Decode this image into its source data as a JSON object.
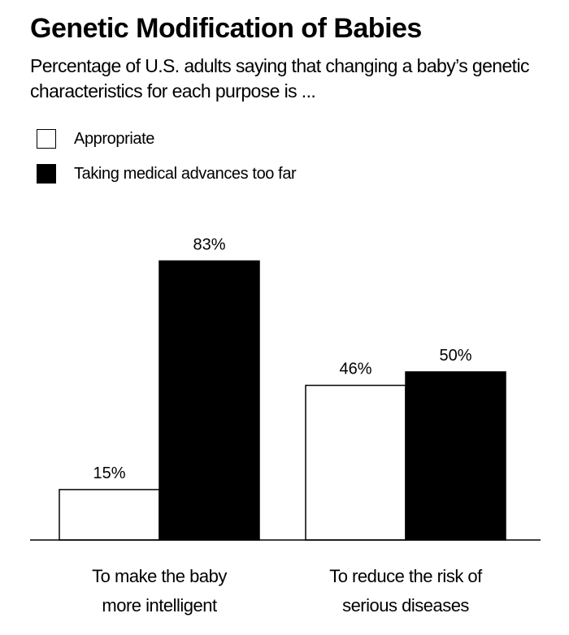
{
  "colors": {
    "appropriate": "#ffffff",
    "too_far": "#000000",
    "stroke": "#000000"
  },
  "chart_data": {
    "type": "bar",
    "title": "Genetic Modification of Babies",
    "subtitle": "Percentage of U.S. adults saying that changing a baby’s genetic characteristics for each purpose is ...",
    "categories": [
      [
        "To make the baby",
        "more intelligent"
      ],
      [
        "To reduce the risk of",
        "serious diseases"
      ]
    ],
    "series": [
      {
        "name": "Appropriate",
        "values": [
          15,
          46
        ],
        "labels": [
          "15%",
          "46%"
        ]
      },
      {
        "name": "Taking medical advances too far",
        "values": [
          83,
          50
        ],
        "labels": [
          "83%",
          "50%"
        ]
      }
    ],
    "ylim": [
      0,
      100
    ],
    "xlabel": "",
    "ylabel": "",
    "grid": false,
    "legend_position": "top-left"
  }
}
